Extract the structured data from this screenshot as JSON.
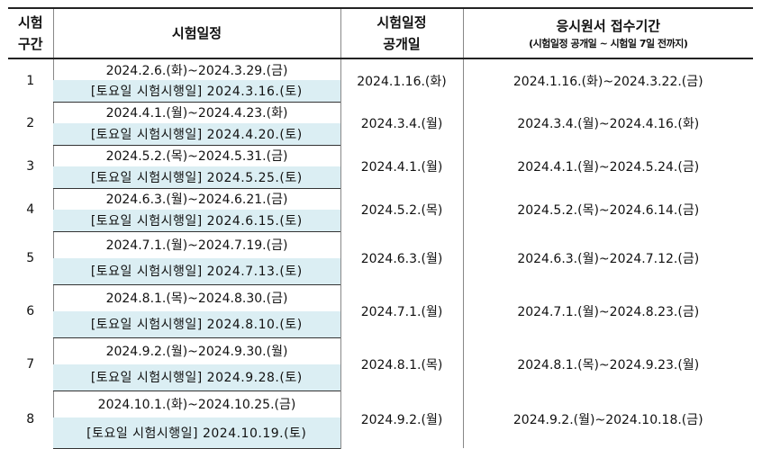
{
  "headers": {
    "col1": [
      "시험",
      "구간"
    ],
    "col2": "시험일정",
    "col3": [
      "시험일정",
      "공개일"
    ],
    "col4": "응시원서 접수기간",
    "col4_sub": "(시험일정 공개일 ~ 시험일 7일 전까지)"
  },
  "rows": [
    {
      "no": "1",
      "range": "2024.2.6.(화)~2024.3.29.(금)",
      "saturday": "[토요일 시험시행일] 2024.3.16.(토)",
      "open": "2024.1.16.(화)",
      "apply": "2024.1.16.(화)~2024.3.22.(금)"
    },
    {
      "no": "2",
      "range": "2024.4.1.(월)~2024.4.23.(화)",
      "saturday": "[토요일 시험시행일] 2024.4.20.(토)",
      "open": "2024.3.4.(월)",
      "apply": "2024.3.4.(월)~2024.4.16.(화)"
    },
    {
      "no": "3",
      "range": "2024.5.2.(목)~2024.5.31.(금)",
      "saturday": "[토요일 시험시행일] 2024.5.25.(토)",
      "open": "2024.4.1.(월)",
      "apply": "2024.4.1.(월)~2024.5.24.(금)"
    },
    {
      "no": "4",
      "range": "2024.6.3.(월)~2024.6.21.(금)",
      "saturday": "[토요일 시험시행일] 2024.6.15.(토)",
      "open": "2024.5.2.(목)",
      "apply": "2024.5.2.(목)~2024.6.14.(금)"
    },
    {
      "no": "5",
      "range": "2024.7.1.(월)~2024.7.19.(금)",
      "saturday": "[토요일 시험시행일] 2024.7.13.(토)",
      "open": "2024.6.3.(월)",
      "apply": "2024.6.3.(월)~2024.7.12.(금)"
    },
    {
      "no": "6",
      "range": "2024.8.1.(목)~2024.8.30.(금)",
      "saturday": "[토요일 시험시행일] 2024.8.10.(토)",
      "open": "2024.7.1.(월)",
      "apply": "2024.7.1.(월)~2024.8.23.(금)"
    },
    {
      "no": "7",
      "range": "2024.9.2.(월)~2024.9.30.(월)",
      "saturday": "[토요일 시험시행일] 2024.9.28.(토)",
      "open": "2024.8.1.(목)",
      "apply": "2024.8.1.(목)~2024.9.23.(월)"
    },
    {
      "no": "8",
      "range": "2024.10.1.(화)~2024.10.25.(금)",
      "saturday": "[토요일 시험시행일] 2024.10.19.(토)",
      "open": "2024.9.2.(월)",
      "apply": "2024.9.2.(월)~2024.10.18.(금)"
    }
  ],
  "colors": {
    "saturday_bg": "#dbeef3",
    "rule": "#222222"
  }
}
